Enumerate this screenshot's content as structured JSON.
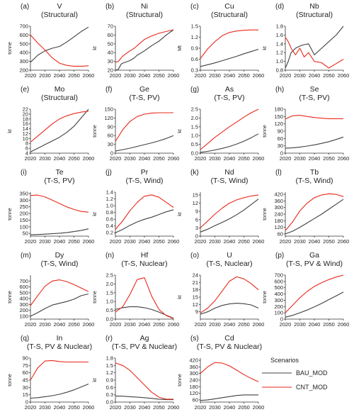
{
  "colors": {
    "BAU_MOD": "#404040",
    "CNT_MOD": "#e8291c"
  },
  "legend": {
    "title": "Scenarios",
    "items": [
      "BAU_MOD",
      "CNT_MOD"
    ]
  },
  "chart_data": [
    {
      "type": "line",
      "panel": "(a)",
      "title": [
        "V",
        "(Structural)"
      ],
      "ylabel": "tonne",
      "ylim": [
        200,
        700
      ],
      "yticks": [
        200,
        300,
        400,
        500,
        600,
        700
      ],
      "x": [
        2020,
        2025,
        2030,
        2035,
        2040,
        2045,
        2050,
        2055,
        2060
      ],
      "series": [
        {
          "name": "BAU_MOD",
          "values": [
            290,
            370,
            420,
            450,
            470,
            520,
            580,
            640,
            690
          ]
        },
        {
          "name": "CNT_MOD",
          "values": [
            600,
            510,
            430,
            340,
            280,
            255,
            245,
            245,
            250
          ]
        }
      ]
    },
    {
      "type": "line",
      "panel": "(b)",
      "title": [
        "Ni",
        "(Structural)"
      ],
      "ylabel": "kt",
      "ylim": [
        20,
        70
      ],
      "yticks": [
        20,
        30,
        40,
        50,
        60,
        70
      ],
      "x": [
        2020,
        2022,
        2024,
        2025,
        2030,
        2033,
        2035,
        2040,
        2045,
        2050,
        2055,
        2060
      ],
      "series": [
        {
          "name": "BAU_MOD",
          "values": [
            20,
            21,
            27,
            28,
            31,
            34,
            37,
            42,
            48,
            53,
            60,
            66
          ]
        },
        {
          "name": "CNT_MOD",
          "values": [
            29,
            30,
            34,
            36,
            42,
            45,
            48,
            55,
            59,
            62,
            64,
            66
          ]
        }
      ]
    },
    {
      "type": "line",
      "panel": "(c)",
      "title": [
        "Cu",
        "(Structural)"
      ],
      "ylabel": "Mt",
      "ylim": [
        0.3,
        1.5
      ],
      "yticks": [
        0.3,
        0.6,
        0.9,
        1.2,
        1.5
      ],
      "x": [
        2020,
        2025,
        2030,
        2035,
        2040,
        2045,
        2050,
        2055,
        2060
      ],
      "series": [
        {
          "name": "BAU_MOD",
          "values": [
            0.4,
            0.45,
            0.5,
            0.56,
            0.62,
            0.68,
            0.75,
            0.81,
            0.87
          ]
        },
        {
          "name": "CNT_MOD",
          "values": [
            0.62,
            0.88,
            1.08,
            1.24,
            1.33,
            1.37,
            1.39,
            1.4,
            1.4
          ]
        }
      ]
    },
    {
      "type": "line",
      "panel": "(d)",
      "title": [
        "Nb",
        "(Structural)"
      ],
      "ylabel": "kt",
      "ylim": [
        0.8,
        1.8
      ],
      "yticks": [
        0.8,
        1.0,
        1.2,
        1.4,
        1.6,
        1.8
      ],
      "x": [
        2020,
        2022,
        2024,
        2027,
        2030,
        2033,
        2036,
        2040,
        2045,
        2050,
        2055,
        2060
      ],
      "series": [
        {
          "name": "BAU_MOD",
          "values": [
            0.85,
            1.0,
            1.2,
            1.3,
            1.35,
            1.38,
            1.4,
            1.15,
            1.3,
            1.45,
            1.6,
            1.8
          ]
        },
        {
          "name": "CNT_MOD",
          "values": [
            1.55,
            1.45,
            1.3,
            1.15,
            1.3,
            1.1,
            1.2,
            1.0,
            0.97,
            0.85,
            0.95,
            1.05
          ]
        }
      ]
    },
    {
      "type": "line",
      "panel": "(e)",
      "title": [
        "Mo",
        "(Structural)"
      ],
      "ylabel": "kt",
      "ylim": [
        4,
        22
      ],
      "yticks": [
        4,
        6,
        8,
        10,
        12,
        14,
        16,
        18,
        20,
        22
      ],
      "x": [
        2020,
        2025,
        2030,
        2035,
        2040,
        2045,
        2050,
        2055,
        2060
      ],
      "series": [
        {
          "name": "BAU_MOD",
          "values": [
            4.5,
            6.0,
            7.5,
            9.0,
            10.5,
            12.5,
            15.0,
            18.5,
            22.0
          ]
        },
        {
          "name": "CNT_MOD",
          "values": [
            8.5,
            11.0,
            13.5,
            16.0,
            18.0,
            19.3,
            20.2,
            20.8,
            21.2
          ]
        }
      ]
    },
    {
      "type": "line",
      "panel": "(f)",
      "title": [
        "Ge",
        "(T-S, PV)"
      ],
      "ylabel": "tonne",
      "ylim": [
        0,
        150
      ],
      "yticks": [
        0,
        30,
        60,
        90,
        120,
        150
      ],
      "x": [
        2020,
        2025,
        2030,
        2035,
        2040,
        2045,
        2050,
        2055,
        2060
      ],
      "series": [
        {
          "name": "BAU_MOD",
          "values": [
            7,
            12,
            17,
            23,
            29,
            35,
            42,
            50,
            60
          ]
        },
        {
          "name": "CNT_MOD",
          "values": [
            40,
            80,
            108,
            125,
            133,
            137,
            138,
            138,
            138
          ]
        }
      ]
    },
    {
      "type": "line",
      "panel": "(g)",
      "title": [
        "As",
        "(T-S, PV)"
      ],
      "ylabel": "kt",
      "ylim": [
        0,
        2.5
      ],
      "yticks": [
        0.0,
        0.5,
        1.0,
        1.5,
        2.0,
        2.5
      ],
      "x": [
        2020,
        2025,
        2030,
        2035,
        2040,
        2045,
        2050,
        2055,
        2060
      ],
      "series": [
        {
          "name": "BAU_MOD",
          "values": [
            0.05,
            0.1,
            0.18,
            0.27,
            0.38,
            0.52,
            0.68,
            0.88,
            1.1
          ]
        },
        {
          "name": "CNT_MOD",
          "values": [
            0.2,
            0.55,
            0.9,
            1.2,
            1.5,
            1.77,
            2.05,
            2.3,
            2.5
          ]
        }
      ]
    },
    {
      "type": "line",
      "panel": "(h)",
      "title": [
        "Se",
        "(T-S, PV)"
      ],
      "ylabel": "tonne",
      "ylim": [
        0,
        180
      ],
      "yticks": [
        0,
        30,
        60,
        90,
        120,
        150,
        180
      ],
      "x": [
        2020,
        2025,
        2030,
        2035,
        2040,
        2045,
        2050,
        2055,
        2060
      ],
      "series": [
        {
          "name": "BAU_MOD",
          "values": [
            20,
            22,
            25,
            29,
            34,
            40,
            47,
            56,
            66
          ]
        },
        {
          "name": "CNT_MOD",
          "values": [
            140,
            153,
            155,
            150,
            146,
            143,
            141,
            141,
            141
          ]
        }
      ]
    },
    {
      "type": "line",
      "panel": "(i)",
      "title": [
        "Te",
        "(T-S, PV)"
      ],
      "ylabel": "tonne",
      "ylim": [
        30,
        360
      ],
      "yticks": [
        50,
        100,
        150,
        200,
        250,
        300,
        350
      ],
      "x": [
        2020,
        2025,
        2030,
        2035,
        2040,
        2045,
        2050,
        2055,
        2060
      ],
      "series": [
        {
          "name": "BAU_MOD",
          "values": [
            40,
            42,
            45,
            48,
            52,
            57,
            64,
            73,
            85
          ]
        },
        {
          "name": "CNT_MOD",
          "values": [
            335,
            338,
            325,
            300,
            275,
            250,
            230,
            215,
            210
          ]
        }
      ]
    },
    {
      "type": "line",
      "panel": "(j)",
      "title": [
        "Pr",
        "(T-S, Wind)"
      ],
      "ylabel": "kt",
      "ylim": [
        0.1,
        1.4
      ],
      "yticks": [
        0.2,
        0.4,
        0.6,
        0.8,
        1.0,
        1.2,
        1.4
      ],
      "x": [
        2020,
        2025,
        2030,
        2035,
        2040,
        2045,
        2050,
        2055,
        2060
      ],
      "series": [
        {
          "name": "BAU_MOD",
          "values": [
            0.2,
            0.3,
            0.42,
            0.52,
            0.6,
            0.66,
            0.74,
            0.82,
            0.88
          ]
        },
        {
          "name": "CNT_MOD",
          "values": [
            0.3,
            0.55,
            0.85,
            1.1,
            1.28,
            1.32,
            1.25,
            1.1,
            0.95
          ]
        }
      ]
    },
    {
      "type": "line",
      "panel": "(k)",
      "title": [
        "Nd",
        "(T-S, Wind)"
      ],
      "ylabel": "kt",
      "ylim": [
        0,
        16
      ],
      "yticks": [
        0,
        3,
        6,
        9,
        12,
        15
      ],
      "x": [
        2020,
        2025,
        2030,
        2035,
        2040,
        2045,
        2050,
        2055,
        2060
      ],
      "series": [
        {
          "name": "BAU_MOD",
          "values": [
            1.5,
            2.5,
            3.8,
            5.0,
            6.3,
            7.8,
            9.5,
            11.5,
            13.5
          ]
        },
        {
          "name": "CNT_MOD",
          "values": [
            3.0,
            5.5,
            8.0,
            10.2,
            12.0,
            13.2,
            14.0,
            14.6,
            15.0
          ]
        }
      ]
    },
    {
      "type": "line",
      "panel": "(l)",
      "title": [
        "Tb",
        "(T-S, Wind)"
      ],
      "ylabel": "tonne",
      "ylim": [
        40,
        440
      ],
      "yticks": [
        60,
        120,
        180,
        240,
        300,
        360,
        420
      ],
      "x": [
        2020,
        2025,
        2030,
        2035,
        2040,
        2045,
        2050,
        2055,
        2060
      ],
      "series": [
        {
          "name": "BAU_MOD",
          "values": [
            60,
            85,
            120,
            160,
            200,
            240,
            285,
            330,
            375
          ]
        },
        {
          "name": "CNT_MOD",
          "values": [
            90,
            170,
            270,
            340,
            390,
            415,
            425,
            420,
            400
          ]
        }
      ]
    },
    {
      "type": "line",
      "panel": "(m)",
      "title": [
        "Dy",
        "(T-S, Wind)"
      ],
      "ylabel": "tonne",
      "ylim": [
        50,
        800
      ],
      "yticks": [
        100,
        200,
        300,
        400,
        500,
        600,
        700
      ],
      "x": [
        2020,
        2025,
        2030,
        2035,
        2040,
        2045,
        2050,
        2055,
        2060
      ],
      "series": [
        {
          "name": "BAU_MOD",
          "values": [
            100,
            160,
            230,
            290,
            320,
            350,
            390,
            450,
            480
          ]
        },
        {
          "name": "CNT_MOD",
          "values": [
            280,
            450,
            610,
            700,
            720,
            690,
            640,
            580,
            520
          ]
        }
      ]
    },
    {
      "type": "line",
      "panel": "(n)",
      "title": [
        "Hf",
        "(T-S, Nuclear)"
      ],
      "ylabel": "tonne",
      "ylim": [
        0,
        2.5
      ],
      "yticks": [
        0.0,
        0.5,
        1.0,
        1.5,
        2.0,
        2.5
      ],
      "x": [
        2020,
        2025,
        2030,
        2035,
        2040,
        2045,
        2050,
        2055,
        2060
      ],
      "series": [
        {
          "name": "BAU_MOD",
          "values": [
            0.55,
            0.65,
            0.7,
            0.7,
            0.65,
            0.55,
            0.4,
            0.22,
            0.05
          ]
        },
        {
          "name": "CNT_MOD",
          "values": [
            0.4,
            0.7,
            1.4,
            2.25,
            2.35,
            1.3,
            0.55,
            0.2,
            0.03
          ]
        }
      ]
    },
    {
      "type": "line",
      "panel": "(o)",
      "title": [
        "U",
        "(T-S, Nuclear)"
      ],
      "ylabel": "kt",
      "ylim": [
        6,
        24
      ],
      "yticks": [
        9,
        12,
        15,
        18,
        21,
        24
      ],
      "x": [
        2020,
        2025,
        2030,
        2035,
        2040,
        2045,
        2050,
        2055,
        2060
      ],
      "series": [
        {
          "name": "BAU_MOD",
          "values": [
            8.0,
            9.0,
            10.5,
            11.6,
            12.2,
            12.5,
            12.3,
            11.8,
            10.5
          ]
        },
        {
          "name": "CNT_MOD",
          "values": [
            8.5,
            10.5,
            13.5,
            17.5,
            21.5,
            23.3,
            22.5,
            20.5,
            18.0
          ]
        }
      ]
    },
    {
      "type": "line",
      "panel": "(p)",
      "title": [
        "Ga",
        "(T-S, PV & Wind)"
      ],
      "ylabel": "tonne",
      "ylim": [
        0,
        700
      ],
      "yticks": [
        0,
        100,
        200,
        300,
        400,
        500,
        600,
        700
      ],
      "x": [
        2020,
        2025,
        2030,
        2035,
        2040,
        2045,
        2050,
        2055,
        2060
      ],
      "series": [
        {
          "name": "BAU_MOD",
          "values": [
            30,
            60,
            100,
            145,
            195,
            250,
            310,
            370,
            430
          ]
        },
        {
          "name": "CNT_MOD",
          "values": [
            100,
            220,
            340,
            440,
            520,
            580,
            630,
            670,
            700
          ]
        }
      ]
    },
    {
      "type": "line",
      "panel": "(q)",
      "title": [
        "In",
        "(T-S, PV & Nuclear)"
      ],
      "ylabel": "tonne",
      "ylim": [
        0,
        90
      ],
      "yticks": [
        0,
        15,
        30,
        45,
        60,
        75,
        90
      ],
      "x": [
        2020,
        2025,
        2030,
        2035,
        2040,
        2045,
        2050,
        2055,
        2060
      ],
      "series": [
        {
          "name": "BAU_MOD",
          "values": [
            8,
            9,
            11,
            13,
            16,
            20,
            25,
            31,
            37
          ]
        },
        {
          "name": "CNT_MOD",
          "values": [
            45,
            70,
            84,
            85,
            83,
            82,
            82,
            82,
            82
          ]
        }
      ]
    },
    {
      "type": "line",
      "panel": "(r)",
      "title": [
        "Ag",
        "(T-S, PV & Nuclear)"
      ],
      "ylabel": "kt",
      "ylim": [
        0,
        1.8
      ],
      "yticks": [
        0.0,
        0.3,
        0.6,
        0.9,
        1.2,
        1.5,
        1.8
      ],
      "x": [
        2020,
        2025,
        2030,
        2035,
        2040,
        2045,
        2050,
        2055,
        2060
      ],
      "series": [
        {
          "name": "BAU_MOD",
          "values": [
            0.25,
            0.24,
            0.22,
            0.2,
            0.18,
            0.15,
            0.12,
            0.1,
            0.1
          ]
        },
        {
          "name": "CNT_MOD",
          "values": [
            1.6,
            1.5,
            1.3,
            1.0,
            0.7,
            0.4,
            0.2,
            0.12,
            0.12
          ]
        }
      ]
    },
    {
      "type": "line",
      "panel": "(s)",
      "title": [
        "Cd",
        "(T-S, PV & Nuclear)"
      ],
      "ylabel": "tonne",
      "ylim": [
        40,
        440
      ],
      "yticks": [
        60,
        120,
        180,
        240,
        300,
        360,
        420
      ],
      "x": [
        2020,
        2025,
        2030,
        2035,
        2040,
        2045,
        2050,
        2055,
        2060
      ],
      "series": [
        {
          "name": "BAU_MOD",
          "values": [
            55,
            60,
            70,
            80,
            90,
            100,
            105,
            105,
            105
          ]
        },
        {
          "name": "CNT_MOD",
          "values": [
            300,
            360,
            400,
            395,
            370,
            330,
            290,
            255,
            225
          ]
        }
      ]
    }
  ]
}
